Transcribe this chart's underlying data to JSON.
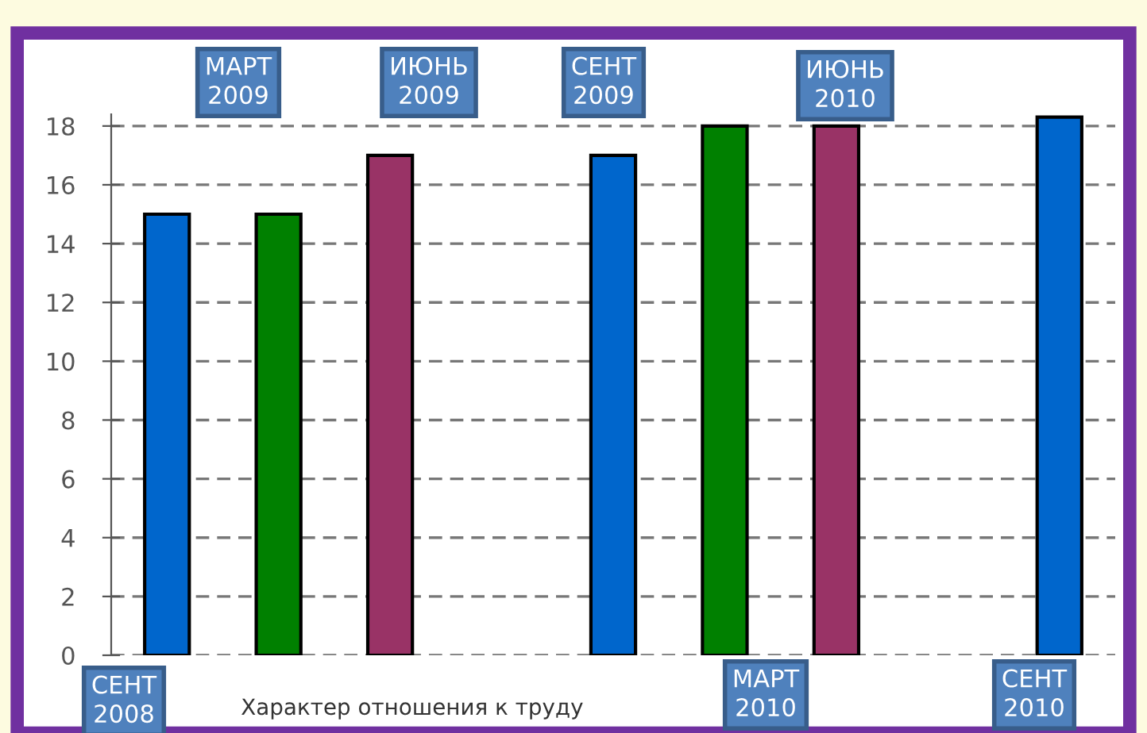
{
  "chart_data": {
    "type": "bar",
    "xlabel": "Характер отношения к труду",
    "categories": [
      null,
      null,
      null,
      null,
      null,
      null,
      null,
      null,
      null
    ],
    "values": [
      15,
      15,
      17,
      null,
      17,
      18,
      18,
      null,
      18.3
    ],
    "colors": [
      "#0066cc",
      "#008000",
      "#993366",
      null,
      "#0066cc",
      "#008000",
      "#993366",
      null,
      "#0066cc"
    ],
    "ylim": [
      0,
      18.4
    ],
    "yticks": [
      0,
      2,
      4,
      6,
      8,
      10,
      12,
      14,
      16,
      18
    ],
    "grid": "y",
    "annotations": [
      "СЕНТ\n2008",
      "МАРТ\n2009",
      "ИЮНЬ\n2009",
      "СЕНТ\n2009",
      "ИЮНЬ\n2010",
      "МАРТ\n2010",
      "СЕНТ\n2010"
    ]
  }
}
